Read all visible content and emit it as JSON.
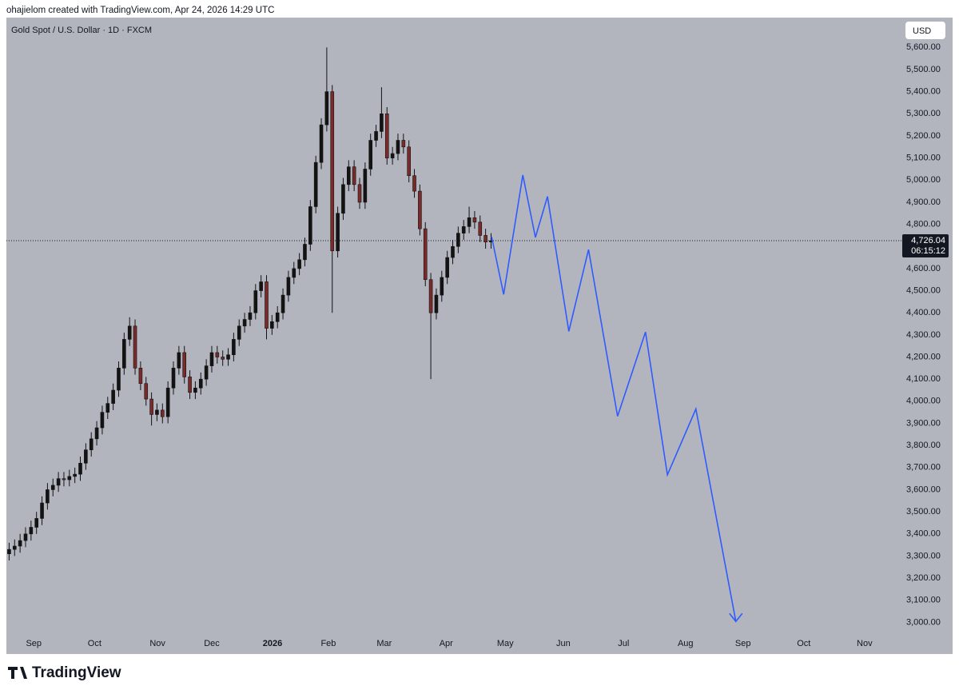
{
  "header": "ohajielom created with TradingView.com, Apr 24, 2026 14:29 UTC",
  "brand": "TradingView",
  "chart_data": {
    "type": "candlestick",
    "title": "Gold Spot / U.S. Dollar · 1D · FXCM",
    "currency": "USD",
    "xlim": [
      -0.5,
      162.5
    ],
    "xticks": [
      {
        "value": 4.5,
        "label": "Sep"
      },
      {
        "value": 15.6,
        "label": "Oct"
      },
      {
        "value": 27.1,
        "label": "Nov"
      },
      {
        "value": 37.0,
        "label": "Dec"
      },
      {
        "value": 48.1,
        "label": "2026"
      },
      {
        "value": 58.3,
        "label": "Feb"
      },
      {
        "value": 68.5,
        "label": "Mar"
      },
      {
        "value": 79.8,
        "label": "Apr"
      },
      {
        "value": 90.6,
        "label": "May"
      },
      {
        "value": 101.2,
        "label": "Jun"
      },
      {
        "value": 112.2,
        "label": "Jul"
      },
      {
        "value": 123.5,
        "label": "Aug"
      },
      {
        "value": 134.0,
        "label": "Sep"
      },
      {
        "value": 145.1,
        "label": "Oct"
      },
      {
        "value": 156.2,
        "label": "Nov"
      }
    ],
    "ylim": [
      2940,
      5735
    ],
    "yticks": [
      {
        "value": 3000,
        "label": "3,000.00"
      },
      {
        "value": 3100,
        "label": "3,100.00"
      },
      {
        "value": 3200,
        "label": "3,200.00"
      },
      {
        "value": 3300,
        "label": "3,300.00"
      },
      {
        "value": 3400,
        "label": "3,400.00"
      },
      {
        "value": 3500,
        "label": "3,500.00"
      },
      {
        "value": 3600,
        "label": "3,600.00"
      },
      {
        "value": 3700,
        "label": "3,700.00"
      },
      {
        "value": 3800,
        "label": "3,800.00"
      },
      {
        "value": 3900,
        "label": "3,900.00"
      },
      {
        "value": 4000,
        "label": "4,000.00"
      },
      {
        "value": 4100,
        "label": "4,100.00"
      },
      {
        "value": 4200,
        "label": "4,200.00"
      },
      {
        "value": 4300,
        "label": "4,300.00"
      },
      {
        "value": 4400,
        "label": "4,400.00"
      },
      {
        "value": 4500,
        "label": "4,500.00"
      },
      {
        "value": 4600,
        "label": "4,600.00"
      },
      {
        "value": 4800,
        "label": "4,800.00"
      },
      {
        "value": 4900,
        "label": "4,900.00"
      },
      {
        "value": 5000,
        "label": "5,000.00"
      },
      {
        "value": 5100,
        "label": "5,100.00"
      },
      {
        "value": 5200,
        "label": "5,200.00"
      },
      {
        "value": 5300,
        "label": "5,300.00"
      },
      {
        "value": 5400,
        "label": "5,400.00"
      },
      {
        "value": 5500,
        "label": "5,500.00"
      },
      {
        "value": 5600,
        "label": "5,600.00"
      }
    ],
    "candles": {
      "up_color": "#131313",
      "down_color": "#7b2a2a",
      "open": [
        3310,
        3330,
        3345,
        3370,
        3400,
        3430,
        3470,
        3540,
        3600,
        3620,
        3650,
        3645,
        3660,
        3670,
        3720,
        3780,
        3830,
        3880,
        3950,
        3990,
        4050,
        4150,
        4280,
        4340,
        4150,
        4080,
        4010,
        3940,
        3960,
        3930,
        4060,
        4150,
        4220,
        4110,
        4040,
        4060,
        4100,
        4160,
        4220,
        4200,
        4190,
        4210,
        4280,
        4340,
        4370,
        4400,
        4500,
        4540,
        4330,
        4360,
        4400,
        4480,
        4560,
        4600,
        4640,
        4710,
        4880,
        5080,
        5250,
        5400,
        4680,
        4850,
        4980,
        5060,
        4980,
        4900,
        5050,
        5180,
        5220,
        5300,
        5100,
        5120,
        5180,
        5150,
        5020,
        4950,
        4780,
        4550,
        4400,
        4480,
        4560,
        4650,
        4700,
        4760,
        4790,
        4830,
        4810,
        4750,
        4720
      ],
      "high": [
        3360,
        3375,
        3400,
        3430,
        3460,
        3500,
        3570,
        3630,
        3650,
        3680,
        3680,
        3690,
        3700,
        3750,
        3810,
        3860,
        3910,
        3980,
        4020,
        4080,
        4180,
        4310,
        4380,
        4370,
        4180,
        4110,
        4040,
        3990,
        3990,
        4090,
        4180,
        4250,
        4250,
        4140,
        4090,
        4130,
        4190,
        4250,
        4250,
        4230,
        4240,
        4310,
        4370,
        4400,
        4430,
        4530,
        4570,
        4570,
        4390,
        4430,
        4510,
        4590,
        4630,
        4670,
        4740,
        4910,
        5110,
        5280,
        5600,
        5430,
        4880,
        5010,
        5090,
        5090,
        5010,
        5080,
        5210,
        5250,
        5420,
        5330,
        5150,
        5210,
        5210,
        5180,
        5050,
        4980,
        4810,
        4580,
        4510,
        4590,
        4680,
        4730,
        4790,
        4820,
        4880,
        4860,
        4840,
        4780,
        4760
      ],
      "low": [
        3280,
        3300,
        3315,
        3340,
        3370,
        3400,
        3440,
        3510,
        3570,
        3590,
        3615,
        3615,
        3630,
        3640,
        3690,
        3750,
        3800,
        3850,
        3920,
        3960,
        4020,
        4120,
        4250,
        4120,
        4050,
        3980,
        3890,
        3910,
        3900,
        3900,
        4030,
        4120,
        4080,
        4010,
        4010,
        4030,
        4070,
        4130,
        4170,
        4160,
        4160,
        4180,
        4250,
        4310,
        4340,
        4370,
        4470,
        4280,
        4300,
        4330,
        4370,
        4450,
        4530,
        4570,
        4610,
        4680,
        4850,
        5050,
        5220,
        4400,
        4650,
        4820,
        4950,
        4950,
        4870,
        4870,
        5020,
        5150,
        5190,
        5070,
        5070,
        5090,
        5120,
        4990,
        4920,
        4750,
        4520,
        4100,
        4370,
        4450,
        4530,
        4620,
        4670,
        4730,
        4760,
        4780,
        4720,
        4690,
        4690
      ],
      "close": [
        3330,
        3345,
        3370,
        3400,
        3430,
        3470,
        3540,
        3600,
        3620,
        3650,
        3645,
        3660,
        3670,
        3720,
        3780,
        3830,
        3880,
        3950,
        3990,
        4050,
        4150,
        4280,
        4340,
        4150,
        4080,
        4010,
        3940,
        3960,
        3930,
        4060,
        4150,
        4220,
        4110,
        4040,
        4060,
        4100,
        4160,
        4220,
        4200,
        4190,
        4210,
        4280,
        4340,
        4370,
        4400,
        4500,
        4540,
        4330,
        4360,
        4400,
        4480,
        4560,
        4600,
        4640,
        4710,
        4880,
        5080,
        5250,
        5400,
        4680,
        4850,
        4980,
        5060,
        4980,
        4900,
        5050,
        5180,
        5220,
        5300,
        5100,
        5120,
        5180,
        5150,
        5020,
        4950,
        4780,
        4550,
        4400,
        4480,
        4560,
        4650,
        4700,
        4760,
        4790,
        4830,
        4810,
        4750,
        4720,
        4726.04
      ]
    },
    "projection": {
      "color": "#2f5bff",
      "x": [
        88.1,
        90.3,
        93.8,
        96.1,
        98.3,
        102.2,
        105.8,
        111.1,
        116.2,
        120.2,
        125.4,
        132.7
      ],
      "y": [
        4744,
        4483,
        5023,
        4741,
        4926,
        4316,
        4686,
        3932,
        4313,
        3667,
        3965,
        3004
      ]
    },
    "last_price": {
      "value": 4726.04,
      "label": "4,726.04",
      "countdown": "06:15:12"
    }
  }
}
